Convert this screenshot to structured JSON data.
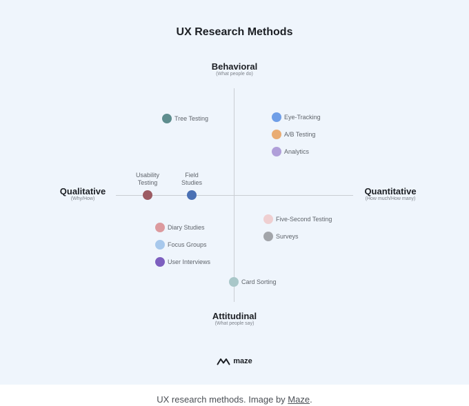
{
  "title": "UX Research Methods",
  "poles": {
    "top": {
      "main": "Behavioral",
      "sub": "(What people do)"
    },
    "bottom": {
      "main": "Attitudinal",
      "sub": "(What people say)"
    },
    "left": {
      "main": "Qualitative",
      "sub": "(Why/How)"
    },
    "right": {
      "main": "Quantitative",
      "sub": "(How much/How many)"
    }
  },
  "methods": {
    "tree_testing": {
      "label": "Tree Testing",
      "color": "#5e8d8e"
    },
    "eye_tracking": {
      "label": "Eye-Tracking",
      "color": "#6f9ee7"
    },
    "ab_testing": {
      "label": "A/B Testing",
      "color": "#e9ac73"
    },
    "analytics": {
      "label": "Analytics",
      "color": "#b09fd9"
    },
    "usability_testing": {
      "line1": "Usability",
      "line2": "Testing",
      "color": "#9c5b63"
    },
    "field_studies": {
      "line1": "Field",
      "line2": "Studies",
      "color": "#4a71b4"
    },
    "five_second_testing": {
      "label": "Five-Second Testing",
      "color": "#efcfd1"
    },
    "surveys": {
      "label": "Surveys",
      "color": "#a2a5aa"
    },
    "diary_studies": {
      "label": "Diary Studies",
      "color": "#dc9a9e"
    },
    "focus_groups": {
      "label": "Focus Groups",
      "color": "#a7c8ec"
    },
    "user_interviews": {
      "label": "User Interviews",
      "color": "#7d5fbf"
    },
    "card_sorting": {
      "label": "Card Sorting",
      "color": "#a9c7c9"
    }
  },
  "logo": {
    "text": "maze"
  },
  "caption": {
    "prefix": "UX research methods. Image by ",
    "link": "Maze",
    "suffix": "."
  }
}
